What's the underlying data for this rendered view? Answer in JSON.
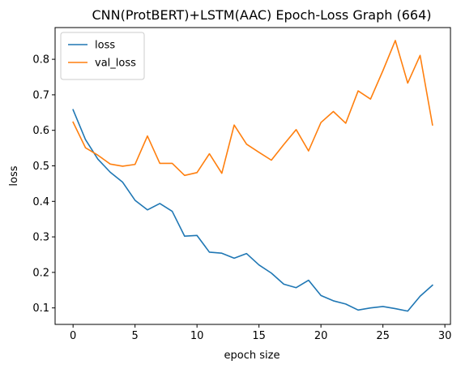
{
  "chart_data": {
    "type": "line",
    "title": "CNN(ProtBERT)+LSTM(AAC) Epoch-Loss Graph (664)",
    "xlabel": "epoch size",
    "ylabel": "loss",
    "xlim": [
      -1.45,
      30.45
    ],
    "ylim": [
      0.0536,
      0.8893
    ],
    "xticks": [
      0,
      5,
      10,
      15,
      20,
      25,
      30
    ],
    "yticks": [
      0.1,
      0.2,
      0.3,
      0.4,
      0.5,
      0.6,
      0.7,
      0.8
    ],
    "grid": false,
    "legend_position": "top-left",
    "x": [
      0,
      1,
      2,
      3,
      4,
      5,
      6,
      7,
      8,
      9,
      10,
      11,
      12,
      13,
      14,
      15,
      16,
      17,
      18,
      19,
      20,
      21,
      22,
      23,
      24,
      25,
      26,
      27,
      28,
      29
    ],
    "series": [
      {
        "name": "loss",
        "color": "#1f77b4",
        "values": [
          0.658,
          0.574,
          0.519,
          0.482,
          0.454,
          0.403,
          0.376,
          0.394,
          0.372,
          0.302,
          0.304,
          0.257,
          0.254,
          0.24,
          0.253,
          0.221,
          0.198,
          0.167,
          0.157,
          0.178,
          0.135,
          0.12,
          0.111,
          0.094,
          0.1,
          0.104,
          0.098,
          0.091,
          0.133,
          0.164
        ]
      },
      {
        "name": "val_loss",
        "color": "#ff7f0e",
        "values": [
          0.623,
          0.551,
          0.53,
          0.505,
          0.499,
          0.504,
          0.584,
          0.507,
          0.507,
          0.473,
          0.481,
          0.534,
          0.479,
          0.615,
          0.561,
          0.538,
          0.516,
          0.56,
          0.602,
          0.542,
          0.622,
          0.653,
          0.62,
          0.711,
          0.688,
          0.768,
          0.853,
          0.733,
          0.811,
          0.615
        ]
      }
    ]
  }
}
